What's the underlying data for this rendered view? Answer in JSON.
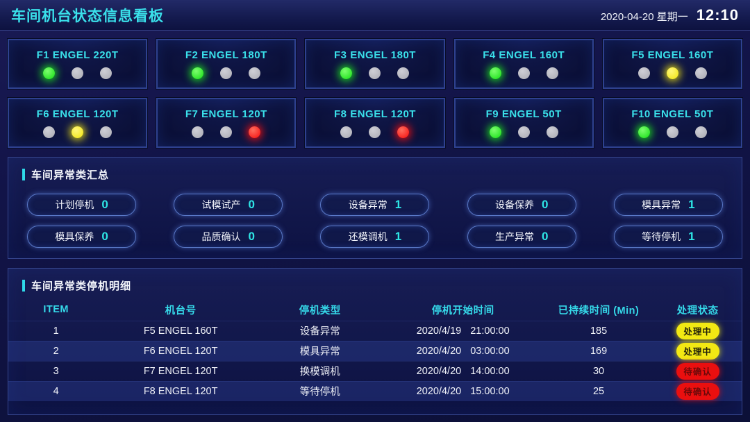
{
  "header": {
    "title": "车间机台状态信息看板",
    "date": "2020-04-20 星期一",
    "time": "12:10"
  },
  "machines": [
    {
      "name": "F1 ENGEL 220T",
      "lights": [
        "green",
        "gray",
        "gray"
      ]
    },
    {
      "name": "F2 ENGEL 180T",
      "lights": [
        "green",
        "gray",
        "gray"
      ]
    },
    {
      "name": "F3 ENGEL 180T",
      "lights": [
        "green",
        "gray",
        "gray"
      ]
    },
    {
      "name": "F4 ENGEL 160T",
      "lights": [
        "green",
        "gray",
        "gray"
      ]
    },
    {
      "name": "F5 ENGEL 160T",
      "lights": [
        "gray",
        "yellow",
        "gray"
      ]
    },
    {
      "name": "F6 ENGEL 120T",
      "lights": [
        "gray",
        "yellow",
        "gray"
      ]
    },
    {
      "name": "F7 ENGEL 120T",
      "lights": [
        "gray",
        "gray",
        "red"
      ]
    },
    {
      "name": "F8 ENGEL 120T",
      "lights": [
        "gray",
        "gray",
        "red"
      ]
    },
    {
      "name": "F9 ENGEL 50T",
      "lights": [
        "green",
        "gray",
        "gray"
      ]
    },
    {
      "name": "F10 ENGEL 50T",
      "lights": [
        "green",
        "gray",
        "gray"
      ]
    }
  ],
  "summary": {
    "title": "车间异常类汇总",
    "items": [
      {
        "label": "计划停机",
        "count": "0"
      },
      {
        "label": "试模试产",
        "count": "0"
      },
      {
        "label": "设备异常",
        "count": "1"
      },
      {
        "label": "设备保养",
        "count": "0"
      },
      {
        "label": "模具异常",
        "count": "1"
      },
      {
        "label": "模具保养",
        "count": "0"
      },
      {
        "label": "品质确认",
        "count": "0"
      },
      {
        "label": "还模调机",
        "count": "1"
      },
      {
        "label": "生产异常",
        "count": "0"
      },
      {
        "label": "等待停机",
        "count": "1"
      }
    ]
  },
  "detail_table": {
    "title": "车间异常类停机明细",
    "columns": [
      "ITEM",
      "机台号",
      "停机类型",
      "停机开始时间",
      "已持续时间 (Min)",
      "处理状态"
    ],
    "rows": [
      {
        "item": "1",
        "machine": "F5 ENGEL 160T",
        "type": "设备异常",
        "date": "2020/4/19",
        "time": "21:00:00",
        "duration": "185",
        "status": "处理中",
        "status_style": "processing"
      },
      {
        "item": "2",
        "machine": "F6 ENGEL 120T",
        "type": "模具异常",
        "date": "2020/4/20",
        "time": "03:00:00",
        "duration": "169",
        "status": "处理中",
        "status_style": "processing"
      },
      {
        "item": "3",
        "machine": "F7 ENGEL 120T",
        "type": "换模调机",
        "date": "2020/4/20",
        "time": "14:00:00",
        "duration": "30",
        "status": "待确认",
        "status_style": "pending"
      },
      {
        "item": "4",
        "machine": "F8 ENGEL 120T",
        "type": "等待停机",
        "date": "2020/4/20",
        "time": "15:00:00",
        "duration": "25",
        "status": "待确认",
        "status_style": "pending"
      }
    ]
  },
  "colors": {
    "accent_cyan": "#3ae0ea",
    "status_green": "#12dd12",
    "status_yellow": "#f0e40c",
    "status_red": "#f70a0a",
    "status_gray": "#a9a9b2",
    "badge_processing_bg": "#f2e813",
    "badge_pending_bg": "#ea0f0f"
  }
}
